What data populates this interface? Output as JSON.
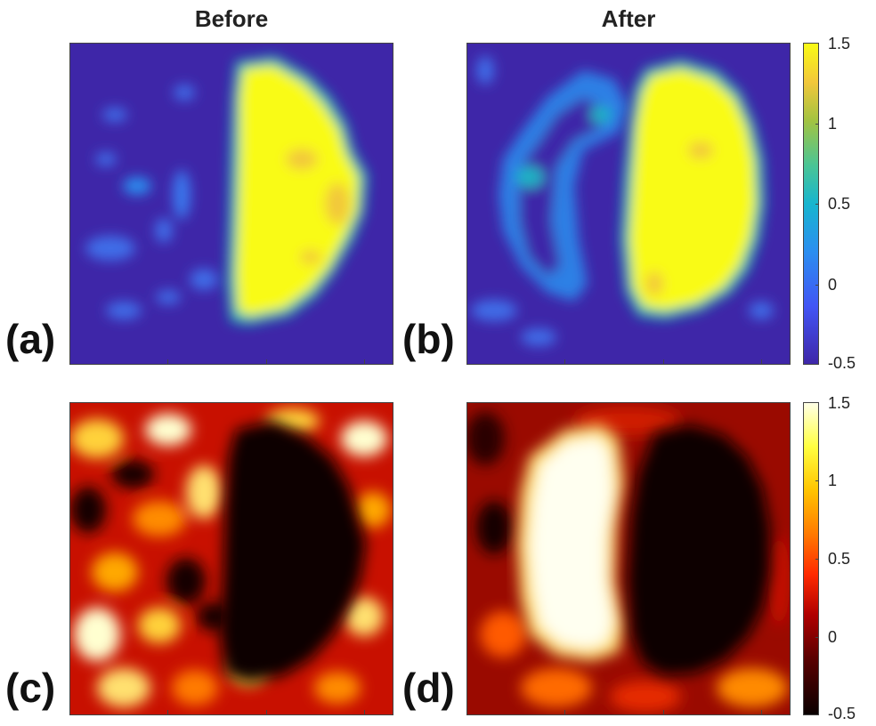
{
  "chart_data": [
    {
      "type": "heatmap",
      "panel": "(a)",
      "title": "Before",
      "colormap": "parula",
      "clim": [
        -0.5,
        1.5
      ],
      "colorbar_ticks": [
        "1.5",
        "1",
        "0.5",
        "0",
        "-0.5"
      ]
    },
    {
      "type": "heatmap",
      "panel": "(b)",
      "title": "After",
      "colormap": "parula",
      "clim": [
        -0.5,
        1.5
      ],
      "colorbar_ticks": [
        "1.5",
        "1",
        "0.5",
        "0",
        "-0.5"
      ]
    },
    {
      "type": "heatmap",
      "panel": "(c)",
      "title": "",
      "colormap": "hot",
      "clim": [
        -0.5,
        1.5
      ],
      "colorbar_ticks": [
        "1.5",
        "1",
        "0.5",
        "0",
        "-0.5"
      ]
    },
    {
      "type": "heatmap",
      "panel": "(d)",
      "title": "",
      "colormap": "hot",
      "clim": [
        -0.5,
        1.5
      ],
      "colorbar_ticks": [
        "1.5",
        "1",
        "0.5",
        "0",
        "-0.5"
      ]
    }
  ],
  "colors": {
    "parula_low": "#3e26a8",
    "parula_mid": "#23a9c9",
    "parula_high": "#f9fb15",
    "hot_low": "#0a0000",
    "hot_mid": "#ff2a00",
    "hot_high": "#ffffe6"
  }
}
